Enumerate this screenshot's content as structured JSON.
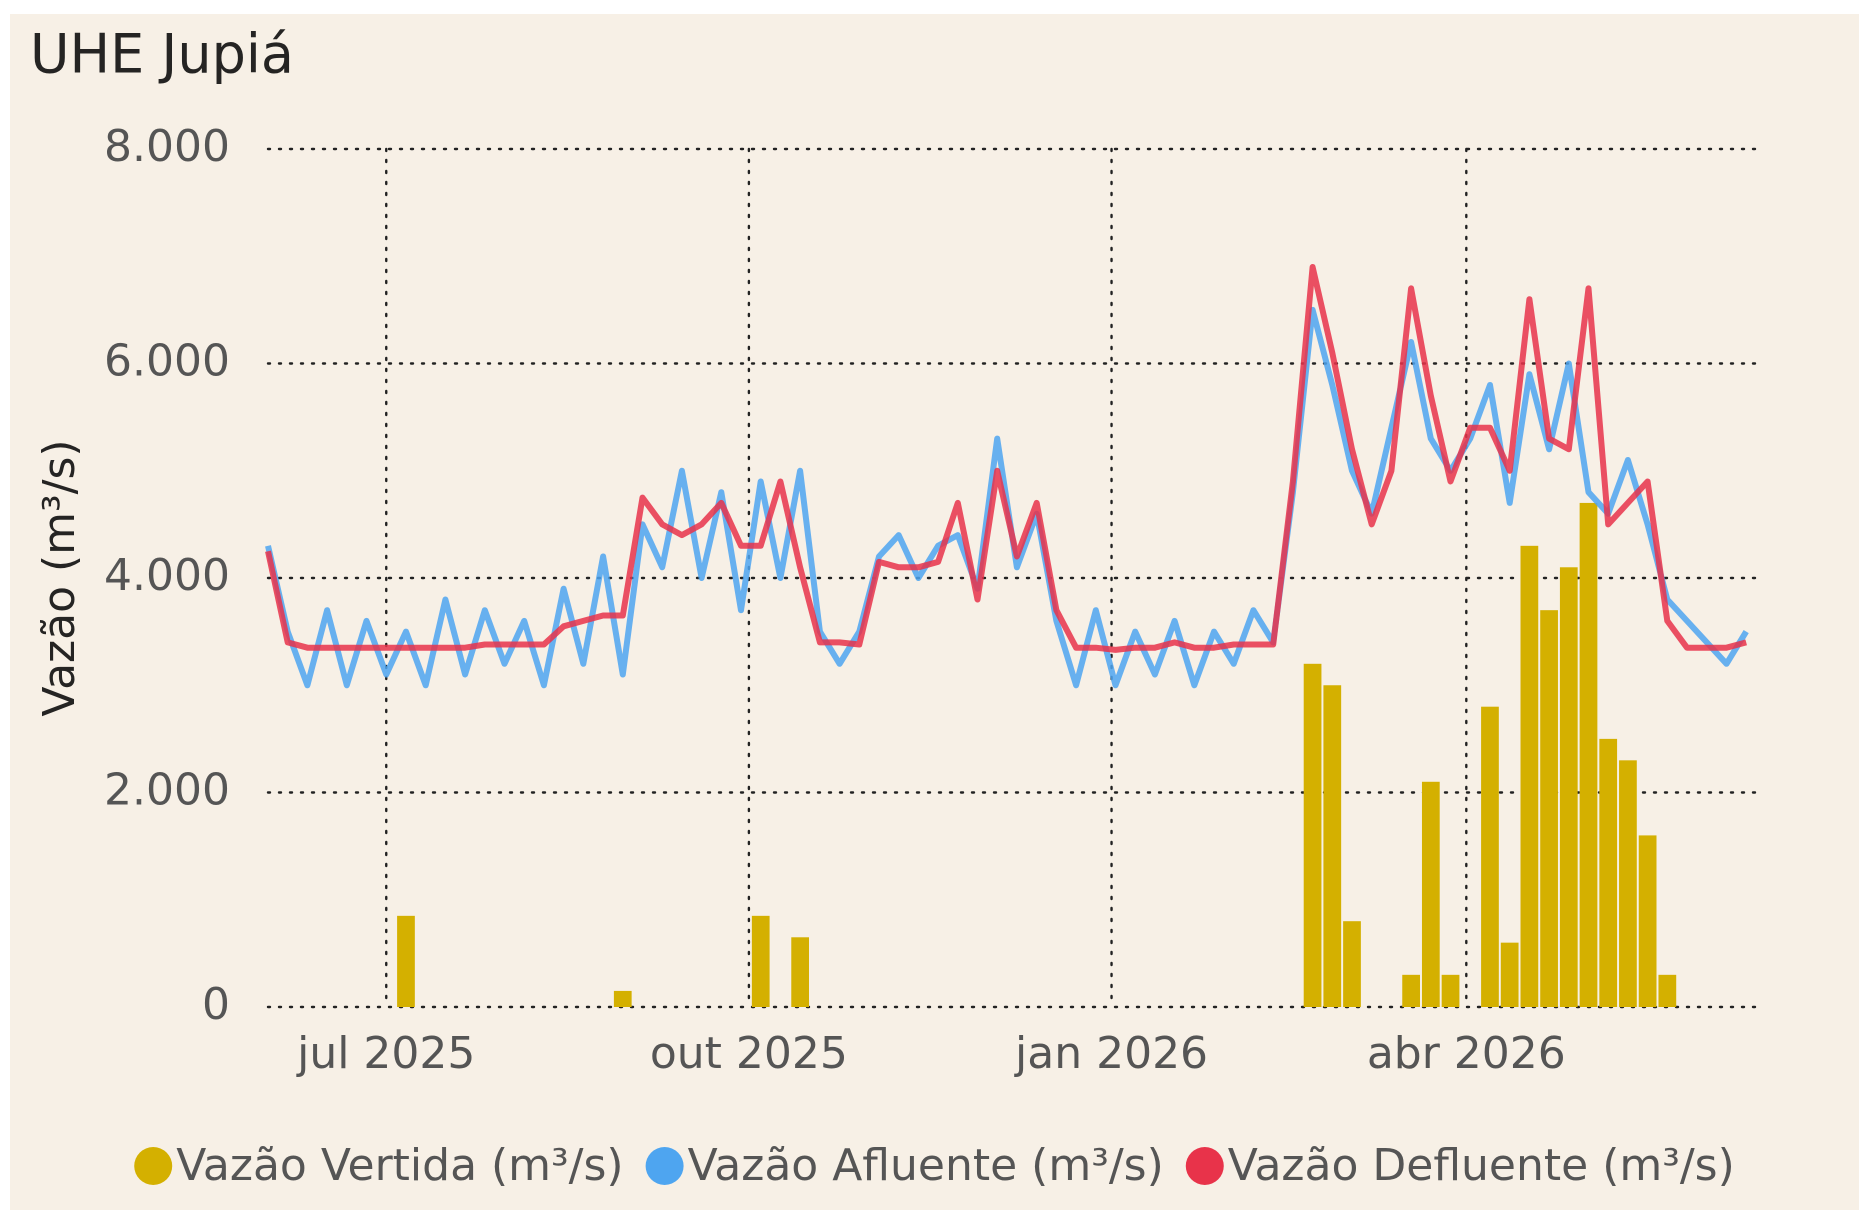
{
  "chart_data": {
    "type": "combo",
    "title": "UHE Jupiá",
    "y_label": "Vazão (m³/s)",
    "x": [
      "2025-06-01",
      "2025-06-06",
      "2025-06-11",
      "2025-06-16",
      "2025-06-21",
      "2025-06-26",
      "2025-07-01",
      "2025-07-06",
      "2025-07-11",
      "2025-07-16",
      "2025-07-21",
      "2025-07-26",
      "2025-07-31",
      "2025-08-05",
      "2025-08-10",
      "2025-08-15",
      "2025-08-20",
      "2025-08-25",
      "2025-08-30",
      "2025-09-04",
      "2025-09-09",
      "2025-09-14",
      "2025-09-19",
      "2025-09-24",
      "2025-09-29",
      "2025-10-04",
      "2025-10-09",
      "2025-10-14",
      "2025-10-19",
      "2025-10-24",
      "2025-10-29",
      "2025-11-03",
      "2025-11-08",
      "2025-11-13",
      "2025-11-18",
      "2025-11-23",
      "2025-11-28",
      "2025-12-03",
      "2025-12-08",
      "2025-12-13",
      "2025-12-18",
      "2025-12-23",
      "2025-12-28",
      "2026-01-02",
      "2026-01-07",
      "2026-01-12",
      "2026-01-17",
      "2026-01-22",
      "2026-01-27",
      "2026-02-01",
      "2026-02-06",
      "2026-02-11",
      "2026-02-16",
      "2026-02-21",
      "2026-02-26",
      "2026-03-03",
      "2026-03-08",
      "2026-03-13",
      "2026-03-18",
      "2026-03-23",
      "2026-03-28",
      "2026-04-02",
      "2026-04-07",
      "2026-04-12",
      "2026-04-17",
      "2026-04-22",
      "2026-04-27",
      "2026-05-02",
      "2026-05-07",
      "2026-05-12",
      "2026-05-17",
      "2026-05-22",
      "2026-05-27",
      "2026-06-01",
      "2026-06-06",
      "2026-06-11"
    ],
    "series": [
      {
        "name": "Vazão Vertida (m³/s)",
        "kind": "bar",
        "color": "#d4b000",
        "values": [
          0,
          0,
          0,
          0,
          0,
          0,
          0,
          850,
          0,
          0,
          0,
          0,
          0,
          0,
          0,
          0,
          0,
          0,
          150,
          0,
          0,
          0,
          0,
          0,
          0,
          850,
          0,
          650,
          0,
          0,
          0,
          0,
          0,
          0,
          0,
          0,
          0,
          0,
          0,
          0,
          0,
          0,
          0,
          0,
          0,
          0,
          0,
          0,
          0,
          0,
          0,
          0,
          0,
          3200,
          3000,
          800,
          0,
          0,
          300,
          2100,
          300,
          0,
          2800,
          600,
          4300,
          3700,
          4100,
          4700,
          2500,
          2300,
          1600,
          300,
          0,
          0,
          0,
          0
        ]
      },
      {
        "name": "Vazão Afluente (m³/s)",
        "kind": "line",
        "color": "#4ea5f0",
        "values": [
          4300,
          3500,
          3000,
          3700,
          3000,
          3600,
          3100,
          3500,
          3000,
          3800,
          3100,
          3700,
          3200,
          3600,
          3000,
          3900,
          3200,
          4200,
          3100,
          4500,
          4100,
          5000,
          4000,
          4800,
          3700,
          4900,
          4000,
          5000,
          3500,
          3200,
          3500,
          4200,
          4400,
          4000,
          4300,
          4400,
          3900,
          5300,
          4100,
          4600,
          3600,
          3000,
          3700,
          3000,
          3500,
          3100,
          3600,
          3000,
          3500,
          3200,
          3700,
          3400,
          4800,
          6500,
          5800,
          5000,
          4600,
          5400,
          6200,
          5300,
          5000,
          5300,
          5800,
          4700,
          5900,
          5200,
          6000,
          4800,
          4600,
          5100,
          4500,
          3800,
          3600,
          3400,
          3200,
          3500
        ]
      },
      {
        "name": "Vazão Defluente (m³/s)",
        "kind": "line",
        "color": "#e8334a",
        "values": [
          4250,
          3400,
          3350,
          3350,
          3350,
          3350,
          3350,
          3350,
          3350,
          3350,
          3350,
          3380,
          3380,
          3380,
          3380,
          3550,
          3600,
          3650,
          3650,
          4750,
          4500,
          4400,
          4500,
          4700,
          4300,
          4300,
          4900,
          4100,
          3400,
          3400,
          3380,
          4150,
          4100,
          4100,
          4150,
          4700,
          3800,
          5000,
          4200,
          4700,
          3700,
          3350,
          3350,
          3330,
          3350,
          3350,
          3400,
          3350,
          3350,
          3380,
          3380,
          3380,
          4900,
          6900,
          6100,
          5200,
          4500,
          5000,
          6700,
          5700,
          4900,
          5400,
          5400,
          5000,
          6600,
          5300,
          5200,
          6700,
          4500,
          4700,
          4900,
          3600,
          3350,
          3350,
          3350,
          3400
        ]
      }
    ],
    "xlim": [
      "2025-06-01",
      "2026-06-14"
    ],
    "xticks": [
      {
        "value": "2025-07-01",
        "label": "jul 2025"
      },
      {
        "value": "2025-10-01",
        "label": "out 2025"
      },
      {
        "value": "2026-01-01",
        "label": "jan 2026"
      },
      {
        "value": "2026-04-01",
        "label": "abr 2026"
      }
    ],
    "ylim": [
      0,
      8000
    ],
    "yticks": [
      0,
      {
        "value": 2000,
        "label": "2.000"
      },
      {
        "value": 4000,
        "label": "4.000"
      },
      {
        "value": 6000,
        "label": "6.000"
      },
      {
        "value": 8000,
        "label": "8.000"
      }
    ],
    "grid": true,
    "legend": "bottom"
  }
}
